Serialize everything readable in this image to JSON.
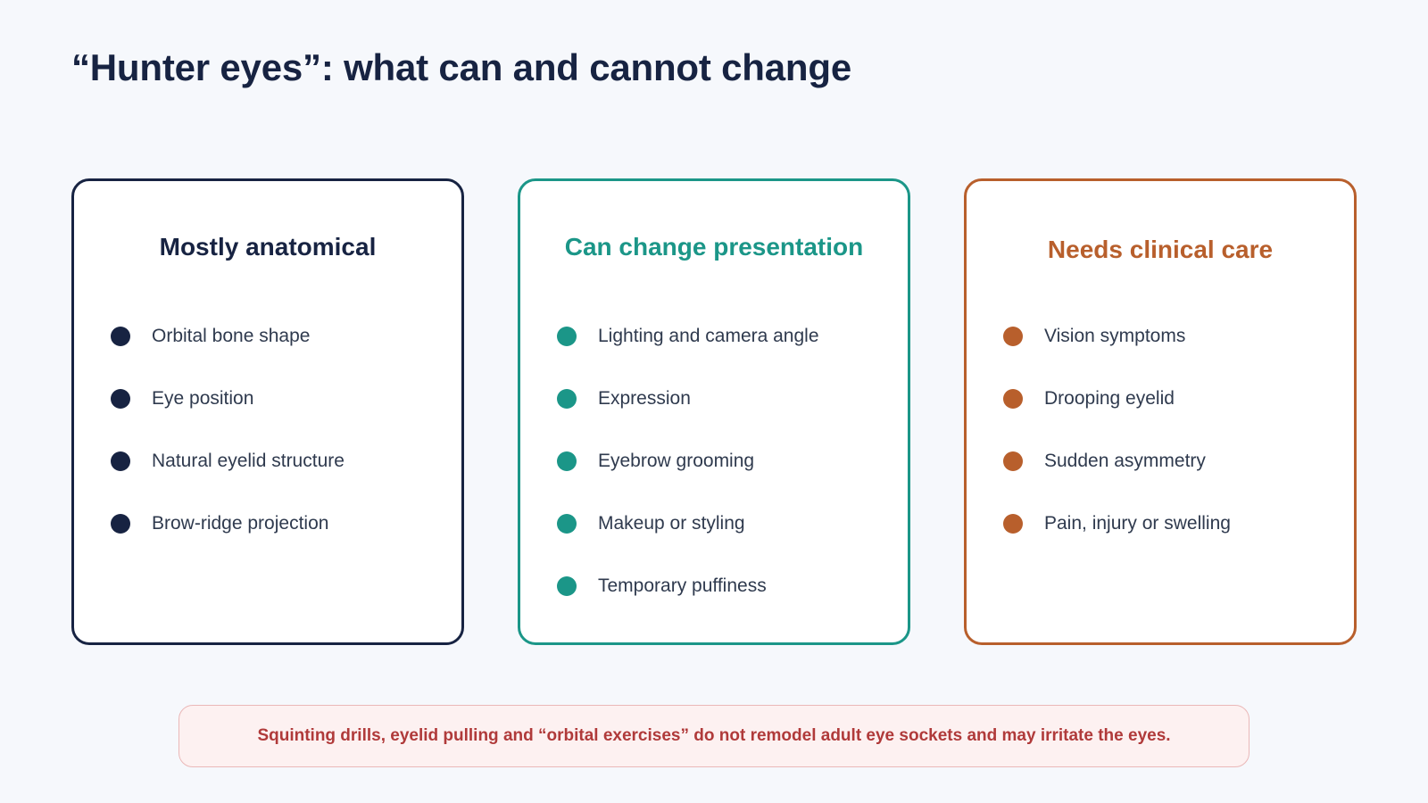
{
  "title": "“Hunter eyes”: what can and cannot change",
  "colors": {
    "background": "#f6f8fc",
    "navy": "#172342",
    "teal": "#1b9688",
    "orange": "#b85f2c",
    "warning_text": "#b03a3a",
    "warning_bg": "#fdf1f1",
    "warning_border": "#eab8b8"
  },
  "cards": [
    {
      "title": "Mostly anatomical",
      "color": "#172342",
      "items": [
        "Orbital bone shape",
        "Eye position",
        "Natural eyelid structure",
        "Brow-ridge projection"
      ]
    },
    {
      "title": "Can change presentation",
      "color": "#1b9688",
      "items": [
        "Lighting and camera angle",
        "Expression",
        "Eyebrow grooming",
        "Makeup or styling",
        "Temporary puffiness"
      ]
    },
    {
      "title": "Needs clinical care",
      "color": "#b85f2c",
      "items": [
        "Vision symptoms",
        "Drooping eyelid",
        "Sudden asymmetry",
        "Pain, injury or swelling"
      ]
    }
  ],
  "warning": "Squinting drills, eyelid pulling and “orbital exercises” do not remodel adult eye sockets and may irritate the eyes."
}
